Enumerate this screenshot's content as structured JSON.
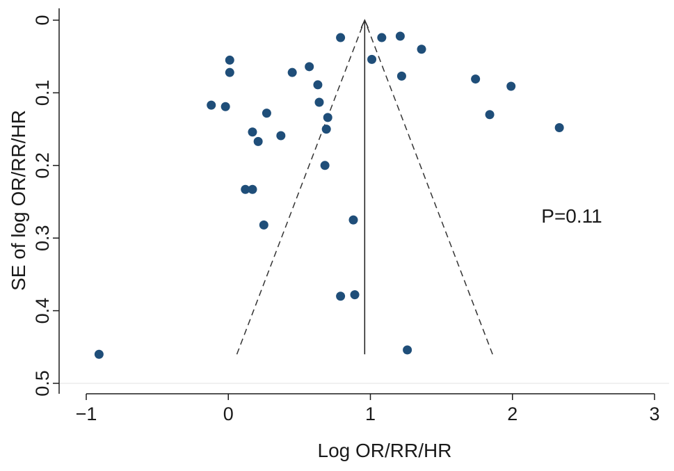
{
  "chart_data": {
    "type": "scatter",
    "title": "",
    "xlabel": "Log OR/RR/HR",
    "ylabel": "SE of log OR/RR/HR",
    "xlim": [
      -1,
      3
    ],
    "ylim": [
      0,
      0.5
    ],
    "y_reversed": true,
    "xticks": [
      -1,
      0,
      1,
      2,
      3
    ],
    "xtick_labels": [
      "−1",
      "0",
      "1",
      "2",
      "3"
    ],
    "yticks": [
      0,
      0.1,
      0.2,
      0.3,
      0.4,
      0.5
    ],
    "ytick_labels": [
      "0",
      "0.1",
      "0.2",
      "0.3",
      "0.4",
      "0.5"
    ],
    "grid": false,
    "point_color": "#1f4e79",
    "annotation": "P=0.11",
    "pooled_estimate": 0.96,
    "funnel_limits": {
      "se_max": 0.46,
      "left_x_at_se_max": 0.06,
      "right_x_at_se_max": 1.86
    },
    "points": [
      {
        "x": -0.91,
        "y": 0.46
      },
      {
        "x": -0.12,
        "y": 0.117
      },
      {
        "x": -0.02,
        "y": 0.119
      },
      {
        "x": 0.01,
        "y": 0.055
      },
      {
        "x": 0.01,
        "y": 0.072
      },
      {
        "x": 0.12,
        "y": 0.233
      },
      {
        "x": 0.17,
        "y": 0.233
      },
      {
        "x": 0.17,
        "y": 0.154
      },
      {
        "x": 0.21,
        "y": 0.167
      },
      {
        "x": 0.25,
        "y": 0.282
      },
      {
        "x": 0.27,
        "y": 0.128
      },
      {
        "x": 0.37,
        "y": 0.159
      },
      {
        "x": 0.45,
        "y": 0.072
      },
      {
        "x": 0.57,
        "y": 0.064
      },
      {
        "x": 0.63,
        "y": 0.089
      },
      {
        "x": 0.64,
        "y": 0.113
      },
      {
        "x": 0.68,
        "y": 0.2
      },
      {
        "x": 0.69,
        "y": 0.15
      },
      {
        "x": 0.7,
        "y": 0.134
      },
      {
        "x": 0.79,
        "y": 0.024
      },
      {
        "x": 0.79,
        "y": 0.38
      },
      {
        "x": 0.88,
        "y": 0.275
      },
      {
        "x": 0.89,
        "y": 0.378
      },
      {
        "x": 1.01,
        "y": 0.054
      },
      {
        "x": 1.08,
        "y": 0.024
      },
      {
        "x": 1.21,
        "y": 0.022
      },
      {
        "x": 1.22,
        "y": 0.077
      },
      {
        "x": 1.26,
        "y": 0.454
      },
      {
        "x": 1.36,
        "y": 0.04
      },
      {
        "x": 1.74,
        "y": 0.081
      },
      {
        "x": 1.84,
        "y": 0.13
      },
      {
        "x": 1.99,
        "y": 0.091
      },
      {
        "x": 2.33,
        "y": 0.148
      }
    ]
  }
}
